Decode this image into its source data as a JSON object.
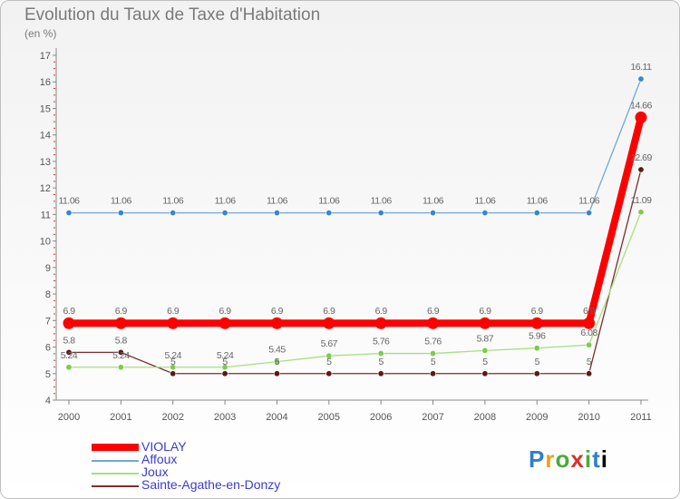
{
  "header": {
    "title": "Evolution du Taux de Taxe d'Habitation",
    "subtitle": "(en %)"
  },
  "logo": {
    "letters": [
      "P",
      "r",
      "o",
      "x",
      "i",
      "t",
      "i"
    ]
  },
  "chart_data": {
    "type": "line",
    "title": "Evolution du Taux de Taxe d'Habitation",
    "ylabel": "(en %)",
    "xlabel": "",
    "categories": [
      "2000",
      "2001",
      "2002",
      "2003",
      "2004",
      "2005",
      "2006",
      "2007",
      "2008",
      "2009",
      "2010",
      "2011"
    ],
    "ylim": [
      4,
      17
    ],
    "yticks": [
      "4",
      "5",
      "6",
      "7",
      "8",
      "9",
      "10",
      "11",
      "12",
      "13",
      "14",
      "15",
      "16",
      "17"
    ],
    "grid": false,
    "legend_position": "bottom-left",
    "series": [
      {
        "name": "VIOLAY",
        "color": "#ff0000",
        "emphasis": true,
        "values": [
          6.9,
          6.9,
          6.9,
          6.9,
          6.9,
          6.9,
          6.9,
          6.9,
          6.9,
          6.9,
          6.9,
          14.66
        ],
        "labels": [
          "6.9",
          "6.9",
          "6.9",
          "6.9",
          "6.9",
          "6.9",
          "6.9",
          "6.9",
          "6.9",
          "6.9",
          "6.9",
          "14.66"
        ]
      },
      {
        "name": "Affoux",
        "color": "#6fa8d6",
        "marker": "#3a86c8",
        "values": [
          11.06,
          11.06,
          11.06,
          11.06,
          11.06,
          11.06,
          11.06,
          11.06,
          11.06,
          11.06,
          11.06,
          16.11
        ],
        "labels": [
          "11.06",
          "11.06",
          "11.06",
          "11.06",
          "11.06",
          "11.06",
          "11.06",
          "11.06",
          "11.06",
          "11.06",
          "11.06",
          "16.11"
        ]
      },
      {
        "name": "Joux",
        "color": "#a6e07e",
        "marker": "#7ccc4a",
        "values": [
          5.24,
          5.24,
          5.24,
          5.24,
          5.45,
          5.67,
          5.76,
          5.76,
          5.87,
          5.96,
          6.08,
          11.09
        ],
        "labels": [
          "5.24",
          "5.24",
          "5.24",
          "5.24",
          "5.45",
          "5.67",
          "5.76",
          "5.76",
          "5.87",
          "5.96",
          "6.08",
          "11.09"
        ]
      },
      {
        "name": "Sainte-Agathe-en-Donzy",
        "color": "#7a2e2e",
        "marker": "#5a1a1a",
        "values": [
          5.8,
          5.8,
          5,
          5,
          5,
          5,
          5,
          5,
          5,
          5,
          5,
          12.69
        ],
        "labels": [
          "5.8",
          "5.8",
          "5",
          "5",
          "5",
          "5",
          "5",
          "5",
          "5",
          "5",
          "5",
          "12.69"
        ]
      }
    ]
  }
}
